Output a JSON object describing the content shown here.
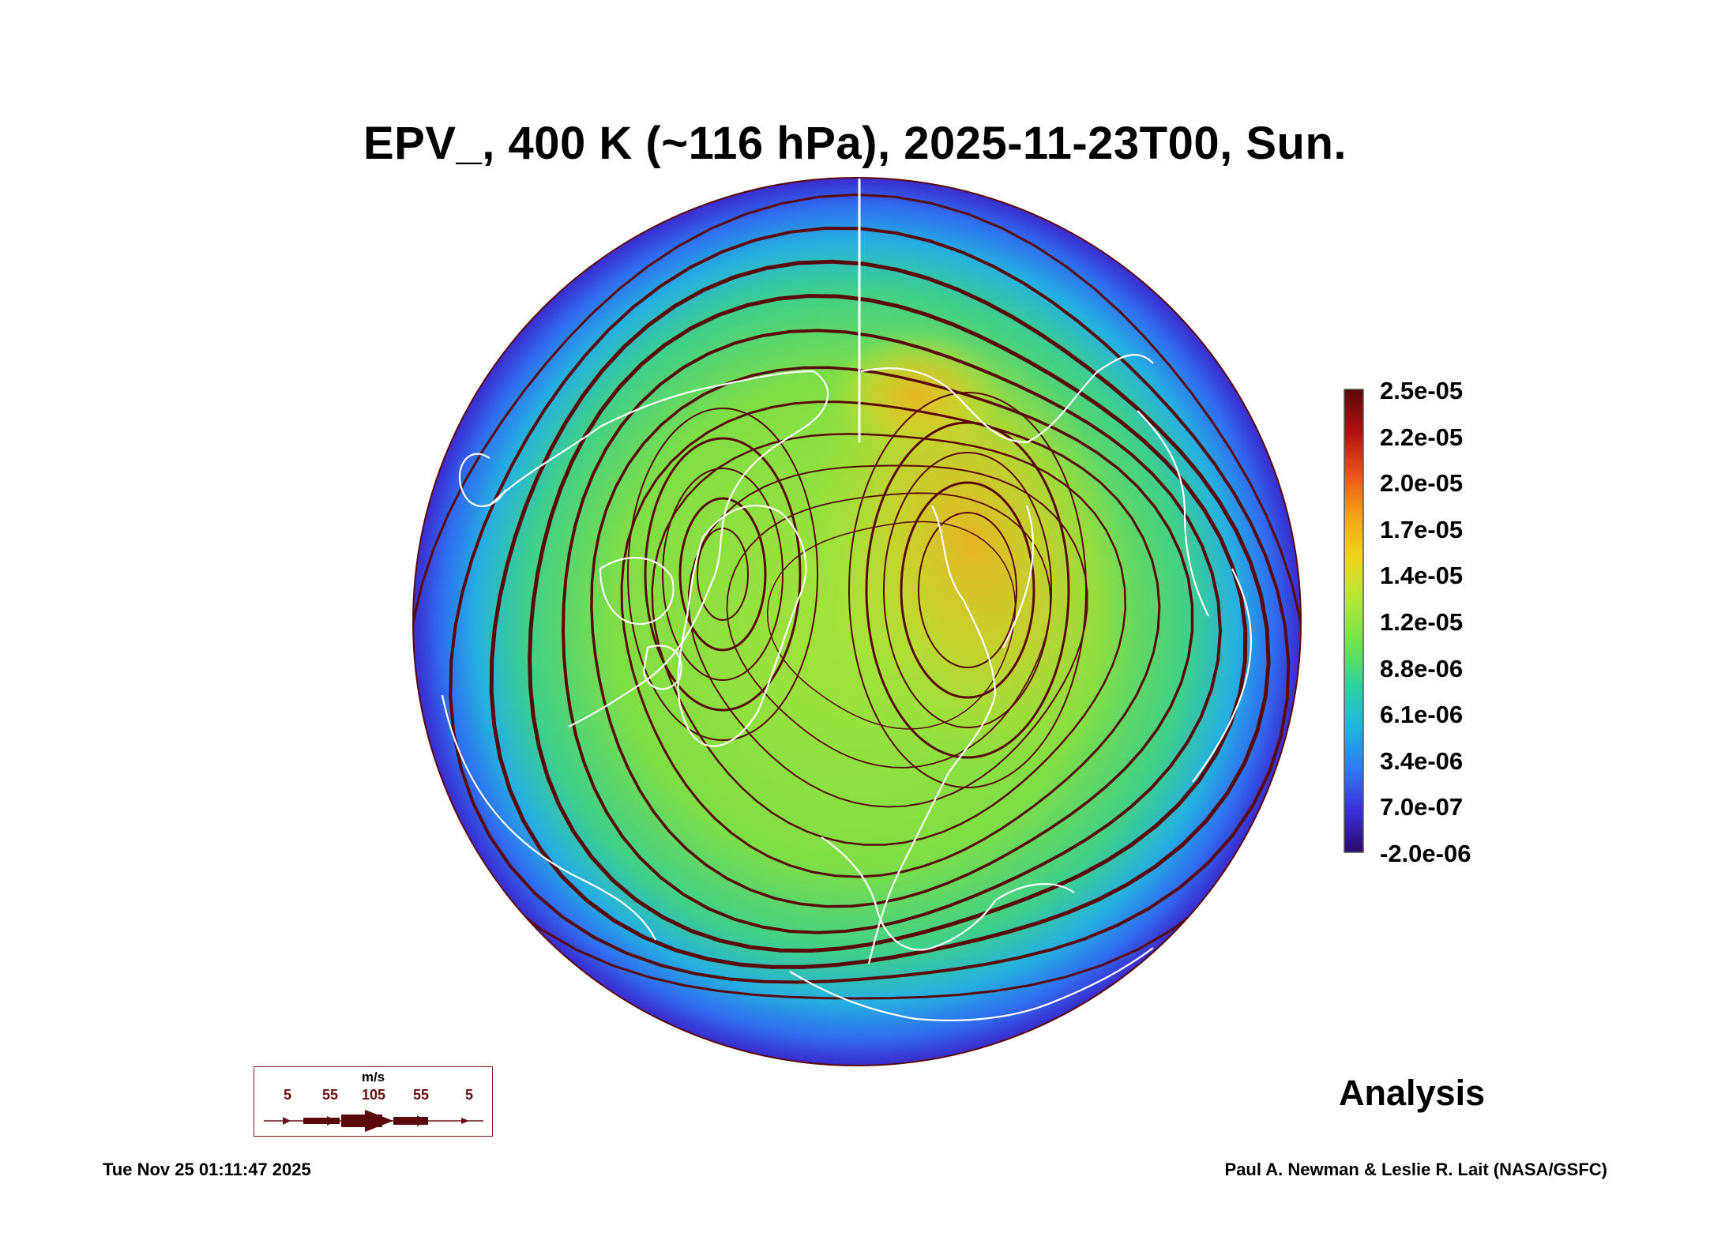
{
  "title": "EPV_, 400 K (~116 hPa), 2025-11-23T00, Sun.",
  "colorbar": {
    "labels": [
      "2.5e-05",
      "2.2e-05",
      "2.0e-05",
      "1.7e-05",
      "1.4e-05",
      "1.2e-05",
      "8.8e-06",
      "6.1e-06",
      "3.4e-06",
      "7.0e-07",
      "-2.0e-06"
    ],
    "min": -2e-06,
    "max": 2.5e-05,
    "colors": [
      "#2a0a6b",
      "#3b2fd8",
      "#2f7bf0",
      "#1fb4e0",
      "#2fd3a0",
      "#6fe34a",
      "#b6e83a",
      "#f0d21e",
      "#f5a01a",
      "#e8501a",
      "#b01010",
      "#5a0a0a"
    ]
  },
  "wind_legend": {
    "unit": "m/s",
    "ticks": [
      "5",
      "55",
      "105",
      "55",
      "5"
    ]
  },
  "annotation": "Analysis",
  "timestamp": "Tue Nov 25 01:11:47 2025",
  "credit": "Paul A. Newman & Leslie R. Lait (NASA/GSFC)",
  "colors": {
    "streamline": "#5a0a0a",
    "coastline": "#ffffff",
    "field_high": "#f5a01a",
    "field_mid": "#8ee23c",
    "field_low": "#3b2fd8"
  }
}
